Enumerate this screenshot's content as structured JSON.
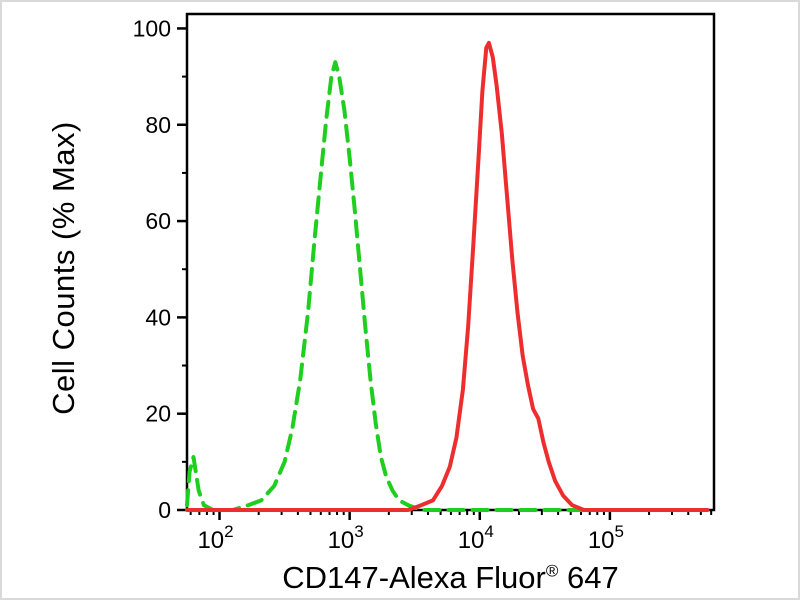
{
  "chart_data": {
    "type": "line",
    "title": "",
    "ylabel": "Cell Counts (% Max)",
    "xlabel_main": "CD147-Alexa Fluor",
    "xlabel_sup": "®",
    "xlabel_end": " 647",
    "x_scale": "log10",
    "x_domain": [
      1.75,
      5.8
    ],
    "y_domain": [
      0,
      103
    ],
    "x_tick_base": "10",
    "x_tick_exponents": [
      "2",
      "3",
      "4",
      "5"
    ],
    "y_ticks": [
      0,
      20,
      40,
      60,
      80,
      100
    ],
    "y_minor_ticks": [
      10,
      30,
      50,
      70,
      90
    ],
    "grid": false,
    "legend": "none",
    "series": [
      {
        "name": "control-green-dashed",
        "color": "#1fce1f",
        "dash": "15 9",
        "width": 4,
        "points": [
          [
            1.75,
            1
          ],
          [
            1.77,
            8
          ],
          [
            1.8,
            11
          ],
          [
            1.84,
            4
          ],
          [
            1.88,
            1
          ],
          [
            1.95,
            0
          ],
          [
            2.1,
            0
          ],
          [
            2.22,
            1
          ],
          [
            2.32,
            2
          ],
          [
            2.42,
            5
          ],
          [
            2.5,
            10
          ],
          [
            2.56,
            17
          ],
          [
            2.62,
            27
          ],
          [
            2.68,
            41
          ],
          [
            2.73,
            56
          ],
          [
            2.78,
            70
          ],
          [
            2.82,
            81
          ],
          [
            2.86,
            90
          ],
          [
            2.89,
            93
          ],
          [
            2.92,
            90
          ],
          [
            2.96,
            83
          ],
          [
            3.0,
            73
          ],
          [
            3.04,
            62
          ],
          [
            3.08,
            50
          ],
          [
            3.12,
            38
          ],
          [
            3.16,
            27
          ],
          [
            3.2,
            18
          ],
          [
            3.24,
            11
          ],
          [
            3.28,
            7
          ],
          [
            3.33,
            4
          ],
          [
            3.38,
            2
          ],
          [
            3.45,
            1
          ],
          [
            3.55,
            0
          ],
          [
            3.8,
            0
          ],
          [
            4.2,
            0
          ],
          [
            4.7,
            0
          ],
          [
            5.2,
            0
          ],
          [
            5.75,
            0
          ]
        ]
      },
      {
        "name": "cd147-red-solid",
        "color": "#ee2e2e",
        "dash": "",
        "width": 4,
        "points": [
          [
            1.75,
            0
          ],
          [
            2.6,
            0
          ],
          [
            3.2,
            0
          ],
          [
            3.45,
            0
          ],
          [
            3.55,
            1
          ],
          [
            3.64,
            2
          ],
          [
            3.71,
            5
          ],
          [
            3.77,
            9
          ],
          [
            3.82,
            15
          ],
          [
            3.87,
            25
          ],
          [
            3.91,
            38
          ],
          [
            3.95,
            55
          ],
          [
            3.99,
            73
          ],
          [
            4.02,
            87
          ],
          [
            4.05,
            96
          ],
          [
            4.07,
            97
          ],
          [
            4.1,
            94
          ],
          [
            4.13,
            88
          ],
          [
            4.17,
            78
          ],
          [
            4.21,
            65
          ],
          [
            4.25,
            52
          ],
          [
            4.29,
            41
          ],
          [
            4.33,
            32
          ],
          [
            4.37,
            26
          ],
          [
            4.41,
            21
          ],
          [
            4.45,
            19
          ],
          [
            4.49,
            14
          ],
          [
            4.53,
            10
          ],
          [
            4.58,
            6
          ],
          [
            4.64,
            3
          ],
          [
            4.71,
            1
          ],
          [
            4.8,
            0
          ],
          [
            5.1,
            0
          ],
          [
            5.5,
            0
          ],
          [
            5.75,
            0
          ]
        ]
      }
    ],
    "colors": {
      "axis": "#000000",
      "background": "#ffffff"
    }
  }
}
